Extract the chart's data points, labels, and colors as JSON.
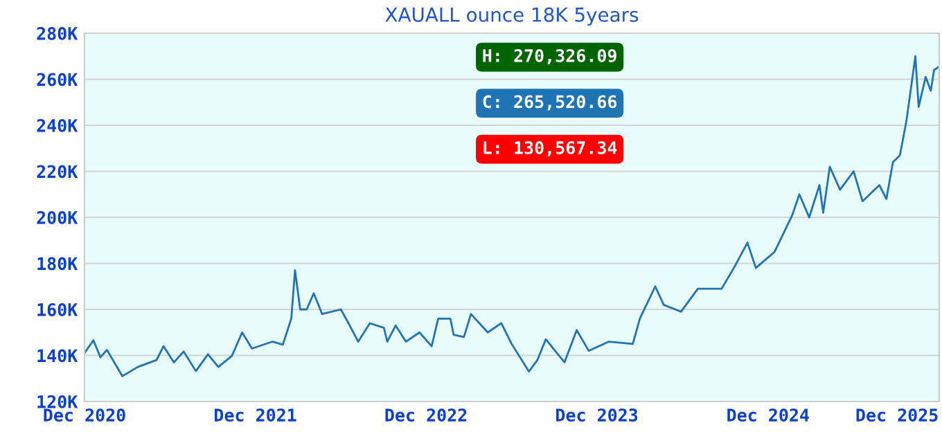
{
  "chart_data": {
    "type": "line",
    "title": "XAUALL ounce 18K 5years",
    "x": [
      "2020-12-01",
      "2020-12-20",
      "2021-01-04",
      "2021-01-18",
      "2021-02-20",
      "2021-03-25",
      "2021-05-04",
      "2021-05-19",
      "2021-06-10",
      "2021-07-01",
      "2021-07-27",
      "2021-08-22",
      "2021-09-13",
      "2021-10-12",
      "2021-11-03",
      "2021-11-24",
      "2022-01-07",
      "2022-01-29",
      "2022-02-16",
      "2022-02-24",
      "2022-03-07",
      "2022-03-21",
      "2022-04-05",
      "2022-04-23",
      "2022-06-02",
      "2022-06-21",
      "2022-07-09",
      "2022-08-03",
      "2022-09-02",
      "2022-09-09",
      "2022-09-27",
      "2022-10-19",
      "2022-11-17",
      "2022-12-13",
      "2022-12-27",
      "2023-01-22",
      "2023-01-29",
      "2023-02-20",
      "2023-03-07",
      "2023-04-12",
      "2023-05-11",
      "2023-06-02",
      "2023-07-09",
      "2023-07-27",
      "2023-08-14",
      "2023-09-23",
      "2023-10-19",
      "2023-11-14",
      "2023-12-27",
      "2024-02-16",
      "2024-03-02",
      "2024-04-04",
      "2024-04-22",
      "2024-05-29",
      "2024-07-04",
      "2024-08-24",
      "2024-09-19",
      "2024-10-18",
      "2024-11-05",
      "2024-12-15",
      "2025-01-22",
      "2025-02-06",
      "2025-02-27",
      "2025-03-21",
      "2025-03-29",
      "2025-04-12",
      "2025-05-04",
      "2025-06-02",
      "2025-06-21",
      "2025-07-27",
      "2025-08-11",
      "2025-08-25",
      "2025-09-09",
      "2025-09-23",
      "2025-10-12",
      "2025-10-19",
      "2025-11-03",
      "2025-11-14",
      "2025-11-21",
      "2025-12-02"
    ],
    "series": [
      {
        "color": "#1f74b4",
        "values": [
          141000,
          146600,
          139200,
          142400,
          131000,
          135000,
          138000,
          144000,
          137000,
          141700,
          133200,
          140500,
          135000,
          139800,
          150000,
          143000,
          146000,
          144700,
          156000,
          177000,
          160000,
          160000,
          167000,
          158000,
          160000,
          153000,
          146000,
          154000,
          152000,
          146000,
          153000,
          146000,
          150000,
          144000,
          156000,
          156000,
          149000,
          148000,
          158000,
          150000,
          154000,
          145000,
          133000,
          138000,
          147000,
          137000,
          151000,
          142000,
          146000,
          145000,
          156000,
          170000,
          162000,
          159000,
          169000,
          169000,
          178000,
          189000,
          178000,
          185000,
          201000,
          210000,
          200000,
          214000,
          202000,
          222000,
          212000,
          220000,
          207000,
          214000,
          208000,
          224000,
          227000,
          242000,
          270000,
          248000,
          261000,
          255000,
          264000,
          265500
        ]
      }
    ],
    "xlim": [
      "2020-12-01",
      "2025-12-02"
    ],
    "xticks": [
      {
        "value": "2020-12-01",
        "label": "Dec 2020"
      },
      {
        "value": "2021-12-01",
        "label": "Dec 2021"
      },
      {
        "value": "2022-12-01",
        "label": "Dec 2022"
      },
      {
        "value": "2023-12-01",
        "label": "Dec 2023"
      },
      {
        "value": "2024-12-01",
        "label": "Dec 2024"
      },
      {
        "value": "2025-12-01",
        "label": "Dec 2025"
      }
    ],
    "ylim": [
      120000,
      280000
    ],
    "yticks": [
      {
        "value": 120000,
        "label": "120K"
      },
      {
        "value": 140000,
        "label": "140K"
      },
      {
        "value": 160000,
        "label": "160K"
      },
      {
        "value": 180000,
        "label": "180K"
      },
      {
        "value": 200000,
        "label": "200K"
      },
      {
        "value": 220000,
        "label": "220K"
      },
      {
        "value": 240000,
        "label": "240K"
      },
      {
        "value": 260000,
        "label": "260K"
      },
      {
        "value": 280000,
        "label": "280K"
      }
    ],
    "grid": "y",
    "annotations": [
      "H: 270,326.09",
      "C: 265,520.66",
      "L: 130,567.34"
    ]
  }
}
